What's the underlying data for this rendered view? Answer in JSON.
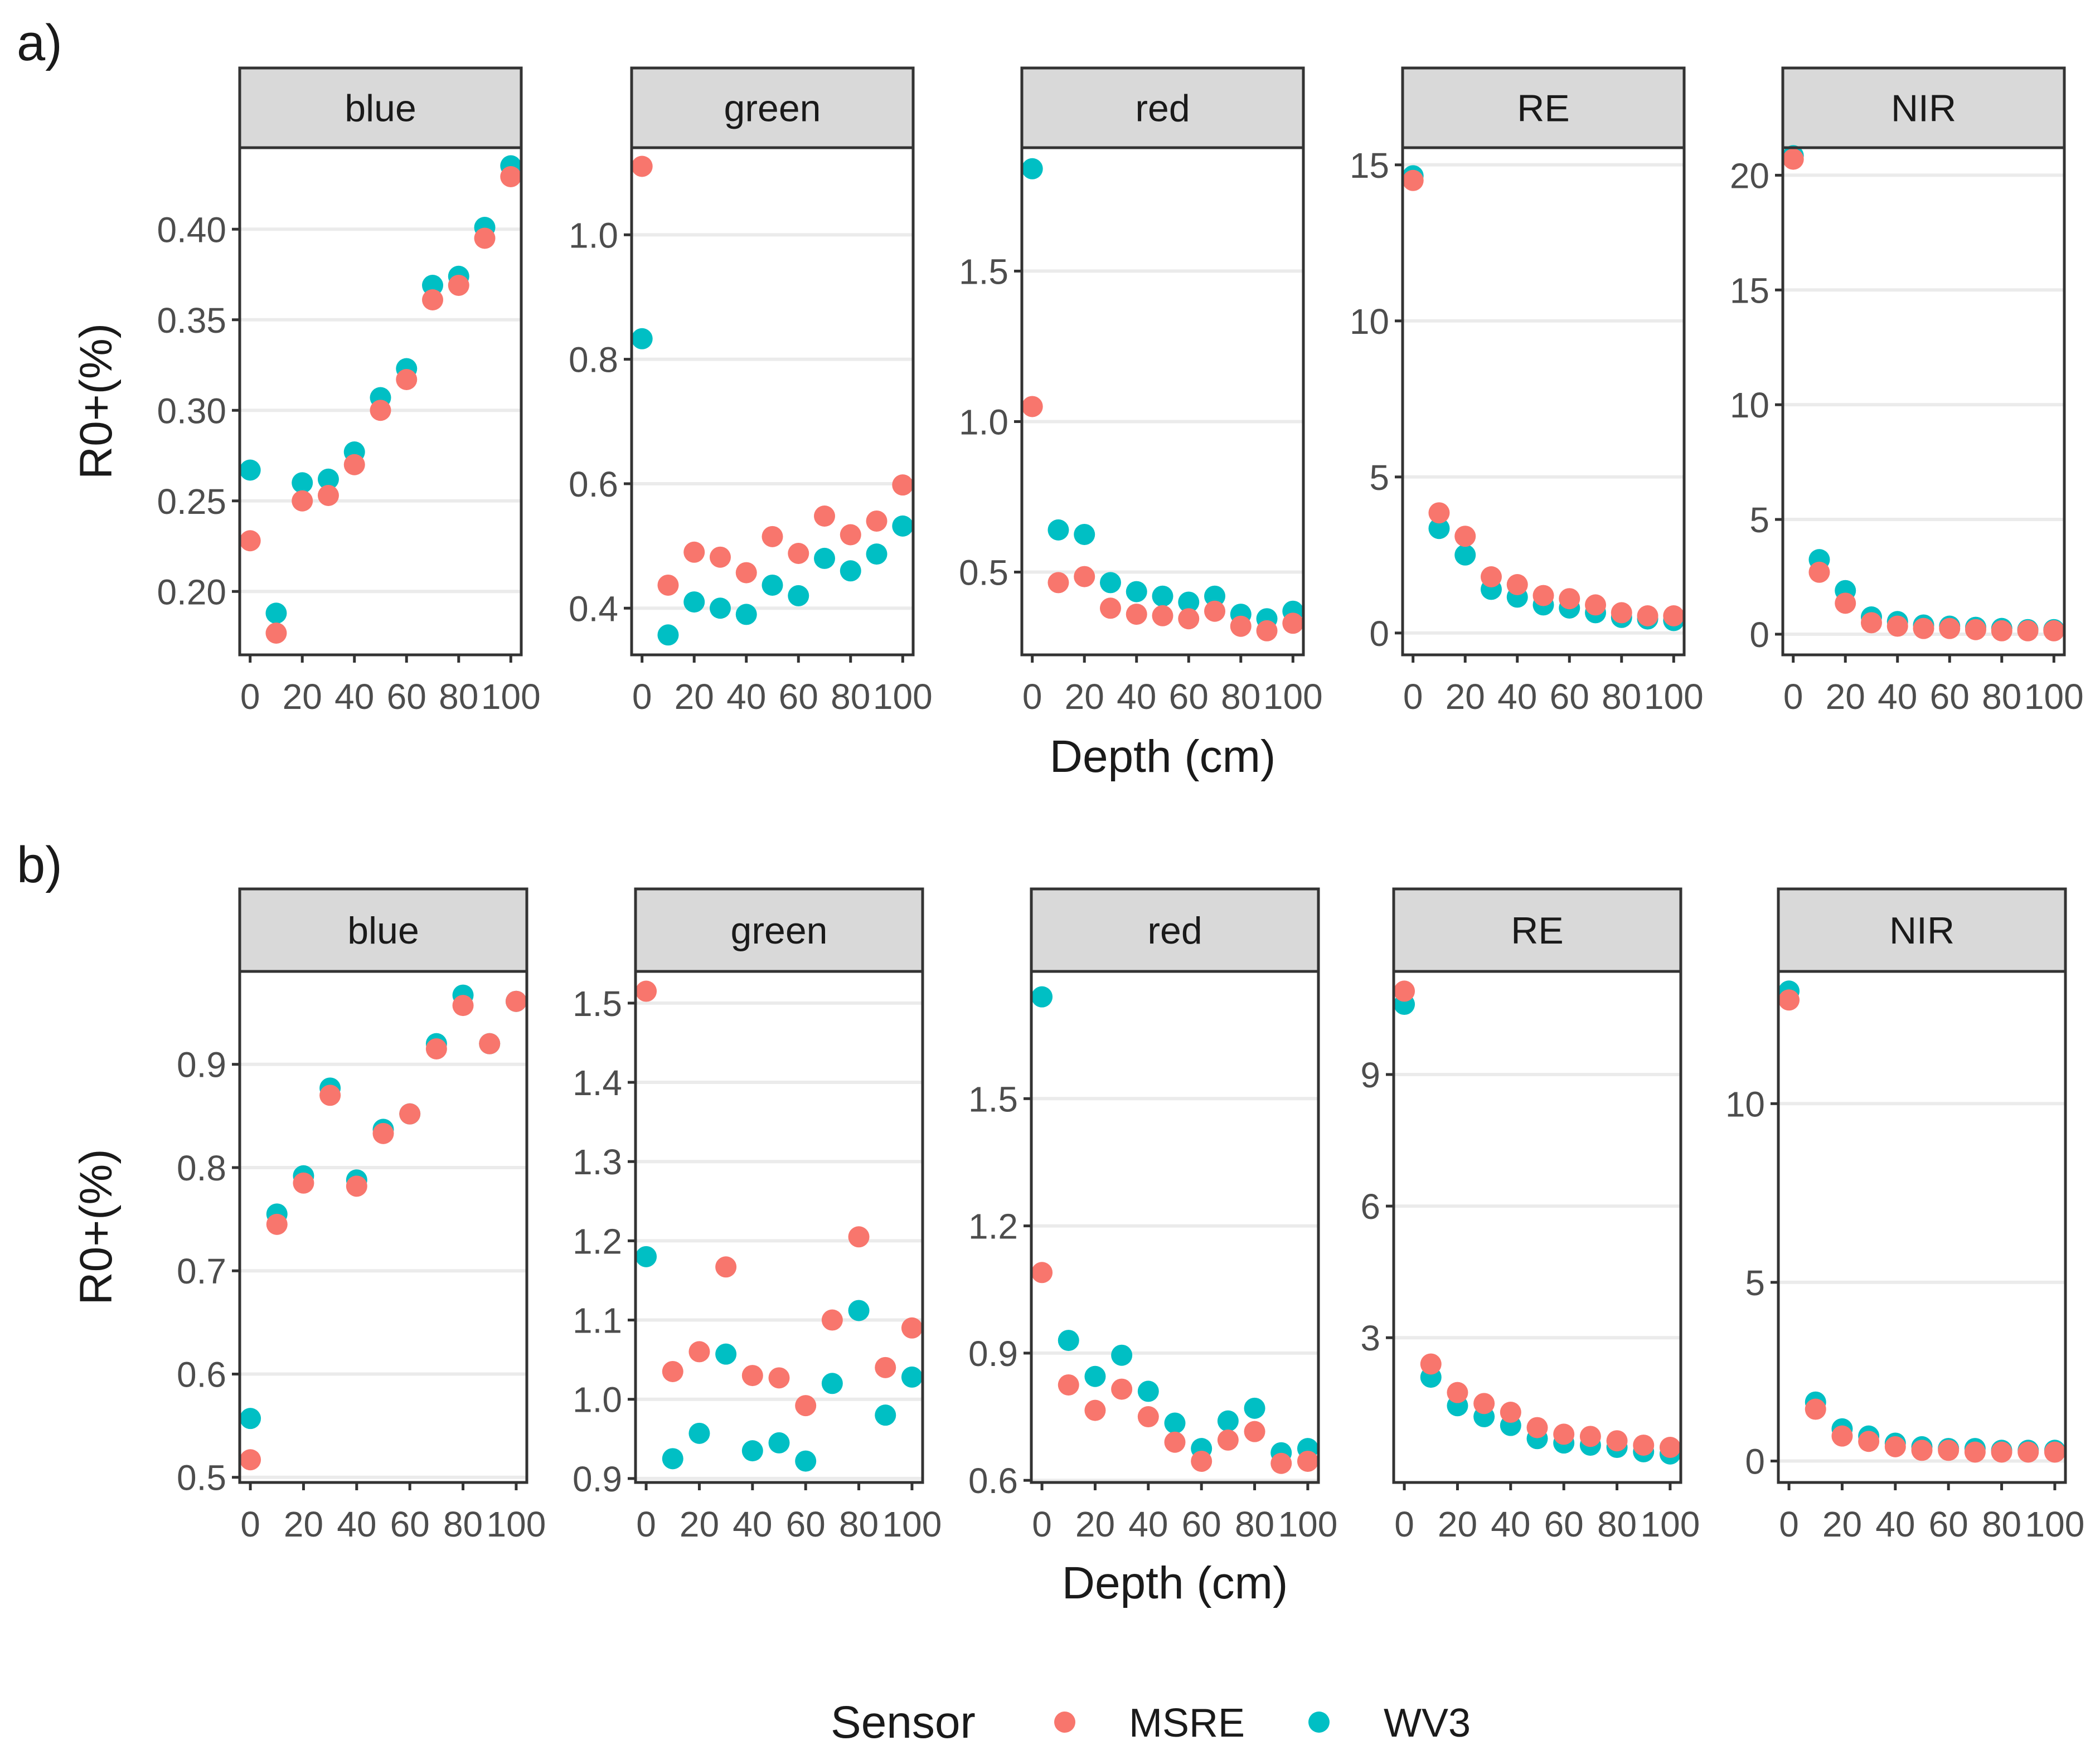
{
  "legend": {
    "title": "Sensor",
    "entries": [
      {
        "name": "MSRE",
        "color": "#F8766D"
      },
      {
        "name": "WV3",
        "color": "#00BFC4"
      }
    ]
  },
  "chart_data": [
    {
      "type": "scatter",
      "label": "a)",
      "xlabel": "Depth (cm)",
      "ylabel": "R0+(%)",
      "x": [
        0,
        10,
        20,
        30,
        40,
        50,
        60,
        70,
        80,
        90,
        100
      ],
      "xticks": [
        0,
        20,
        40,
        60,
        80,
        100
      ],
      "xlim": [
        -4,
        104
      ],
      "facets": [
        {
          "title": "blue",
          "ylim": [
            0.165,
            0.445
          ],
          "yticks": [
            0.2,
            0.25,
            0.3,
            0.35,
            0.4
          ],
          "ytick_labels": [
            "0.20",
            "0.25",
            "0.30",
            "0.35",
            "0.40"
          ],
          "series": [
            {
              "name": "MSRE",
              "values": [
                0.228,
                0.177,
                0.25,
                0.253,
                0.27,
                0.3,
                0.317,
                0.361,
                0.369,
                0.395,
                0.429
              ]
            },
            {
              "name": "WV3",
              "values": [
                0.267,
                0.188,
                0.26,
                0.262,
                0.277,
                0.307,
                0.323,
                0.369,
                0.374,
                0.401,
                0.435
              ]
            }
          ]
        },
        {
          "title": "green",
          "ylim": [
            0.325,
            1.14
          ],
          "yticks": [
            0.4,
            0.6,
            0.8,
            1.0
          ],
          "ytick_labels": [
            "0.4",
            "0.6",
            "0.8",
            "1.0"
          ],
          "series": [
            {
              "name": "MSRE",
              "values": [
                1.11,
                0.437,
                0.49,
                0.482,
                0.457,
                0.515,
                0.488,
                0.548,
                0.518,
                0.54,
                0.598
              ]
            },
            {
              "name": "WV3",
              "values": [
                0.833,
                0.357,
                0.41,
                0.4,
                0.39,
                0.437,
                0.42,
                0.48,
                0.46,
                0.487,
                0.532
              ]
            }
          ]
        },
        {
          "title": "red",
          "ylim": [
            0.225,
            1.91
          ],
          "yticks": [
            0.5,
            1.0,
            1.5
          ],
          "ytick_labels": [
            "0.5",
            "1.0",
            "1.5"
          ],
          "series": [
            {
              "name": "MSRE",
              "values": [
                1.05,
                0.465,
                0.485,
                0.38,
                0.36,
                0.355,
                0.345,
                0.37,
                0.32,
                0.305,
                0.33
              ]
            },
            {
              "name": "WV3",
              "values": [
                1.84,
                0.64,
                0.625,
                0.465,
                0.435,
                0.42,
                0.4,
                0.42,
                0.36,
                0.345,
                0.37
              ]
            }
          ]
        },
        {
          "title": "RE",
          "ylim": [
            -0.7,
            15.55
          ],
          "yticks": [
            0,
            5,
            10,
            15
          ],
          "ytick_labels": [
            "0",
            "5",
            "10",
            "15"
          ],
          "series": [
            {
              "name": "MSRE",
              "values": [
                14.5,
                3.85,
                3.1,
                1.8,
                1.55,
                1.2,
                1.1,
                0.9,
                0.65,
                0.55,
                0.55
              ]
            },
            {
              "name": "WV3",
              "values": [
                14.65,
                3.35,
                2.5,
                1.4,
                1.15,
                0.9,
                0.8,
                0.65,
                0.5,
                0.45,
                0.4
              ]
            }
          ]
        },
        {
          "title": "NIR",
          "ylim": [
            -0.9,
            21.2
          ],
          "yticks": [
            0,
            5,
            10,
            15,
            20
          ],
          "ytick_labels": [
            "0",
            "5",
            "10",
            "15",
            "20"
          ],
          "series": [
            {
              "name": "MSRE",
              "values": [
                20.7,
                2.7,
                1.35,
                0.5,
                0.35,
                0.25,
                0.25,
                0.2,
                0.15,
                0.15,
                0.15
              ]
            },
            {
              "name": "WV3",
              "values": [
                20.85,
                3.25,
                1.9,
                0.75,
                0.55,
                0.4,
                0.35,
                0.3,
                0.25,
                0.2,
                0.2
              ]
            }
          ]
        }
      ]
    },
    {
      "type": "scatter",
      "label": "b)",
      "xlabel": "Depth (cm)",
      "ylabel": "R0+(%)",
      "x": [
        0,
        10,
        20,
        30,
        40,
        50,
        60,
        70,
        80,
        90,
        100
      ],
      "xticks": [
        0,
        20,
        40,
        60,
        80,
        100
      ],
      "xlim": [
        -4,
        104
      ],
      "facets": [
        {
          "title": "blue",
          "ylim": [
            0.495,
            0.99
          ],
          "yticks": [
            0.5,
            0.6,
            0.7,
            0.8,
            0.9
          ],
          "ytick_labels": [
            "0.5",
            "0.6",
            "0.7",
            "0.8",
            "0.9"
          ],
          "series": [
            {
              "name": "MSRE",
              "values": [
                0.517,
                0.745,
                0.785,
                0.87,
                0.782,
                0.833,
                0.852,
                0.915,
                0.957,
                0.92,
                0.961
              ]
            },
            {
              "name": "WV3",
              "values": [
                0.557,
                0.755,
                0.792,
                0.877,
                0.788,
                0.837,
                0.852,
                0.92,
                0.967,
                0.92,
                0.961
              ]
            }
          ]
        },
        {
          "title": "green",
          "ylim": [
            0.895,
            1.54
          ],
          "yticks": [
            0.9,
            1.0,
            1.1,
            1.2,
            1.3,
            1.4,
            1.5
          ],
          "ytick_labels": [
            "0.9",
            "1.0",
            "1.1",
            "1.2",
            "1.3",
            "1.4",
            "1.5"
          ],
          "series": [
            {
              "name": "MSRE",
              "values": [
                1.515,
                1.035,
                1.06,
                1.167,
                1.03,
                1.027,
                0.992,
                1.1,
                1.205,
                1.04,
                1.09
              ]
            },
            {
              "name": "WV3",
              "values": [
                1.18,
                0.925,
                0.957,
                1.057,
                0.935,
                0.945,
                0.922,
                1.02,
                1.112,
                0.98,
                1.028
              ]
            }
          ]
        },
        {
          "title": "red",
          "ylim": [
            0.595,
            1.8
          ],
          "yticks": [
            0.6,
            0.9,
            1.2,
            1.5
          ],
          "ytick_labels": [
            "0.6",
            "0.9",
            "1.2",
            "1.5"
          ],
          "series": [
            {
              "name": "MSRE",
              "values": [
                1.09,
                0.825,
                0.765,
                0.815,
                0.75,
                0.69,
                0.645,
                0.695,
                0.715,
                0.64,
                0.645
              ]
            },
            {
              "name": "WV3",
              "values": [
                1.74,
                0.93,
                0.845,
                0.895,
                0.81,
                0.735,
                0.675,
                0.74,
                0.77,
                0.665,
                0.675
              ]
            }
          ]
        },
        {
          "title": "RE",
          "ylim": [
            -0.3,
            11.35
          ],
          "yticks": [
            3,
            6,
            9
          ],
          "ytick_labels": [
            "3",
            "6",
            "9"
          ],
          "series": [
            {
              "name": "MSRE",
              "values": [
                10.9,
                2.4,
                1.75,
                1.5,
                1.3,
                0.95,
                0.8,
                0.75,
                0.65,
                0.55,
                0.5
              ]
            },
            {
              "name": "WV3",
              "values": [
                10.6,
                2.1,
                1.45,
                1.2,
                1.0,
                0.7,
                0.6,
                0.55,
                0.5,
                0.4,
                0.35
              ]
            }
          ]
        },
        {
          "title": "NIR",
          "ylim": [
            -0.6,
            13.7
          ],
          "yticks": [
            0,
            5,
            10
          ],
          "ytick_labels": [
            "0",
            "5",
            "10"
          ],
          "series": [
            {
              "name": "MSRE",
              "values": [
                12.9,
                1.45,
                0.7,
                0.55,
                0.4,
                0.3,
                0.3,
                0.25,
                0.25,
                0.25,
                0.25
              ]
            },
            {
              "name": "WV3",
              "values": [
                13.15,
                1.65,
                0.9,
                0.7,
                0.5,
                0.4,
                0.35,
                0.35,
                0.3,
                0.3,
                0.3
              ]
            }
          ]
        }
      ]
    }
  ]
}
